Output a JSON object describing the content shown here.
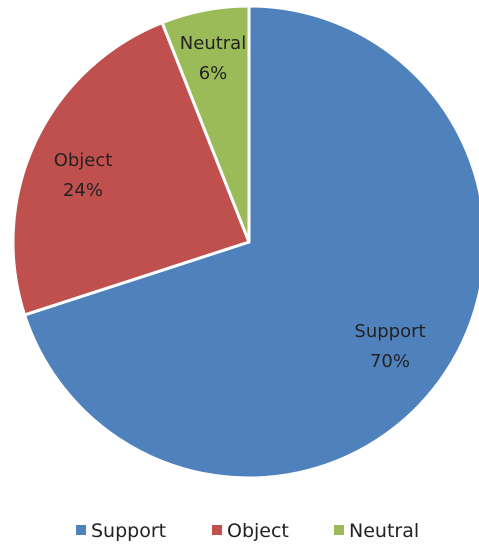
{
  "chart_data": {
    "type": "pie",
    "categories": [
      "Support",
      "Object",
      "Neutral"
    ],
    "values": [
      70,
      24,
      6
    ],
    "value_labels": [
      "70%",
      "24%",
      "6%"
    ],
    "colors": [
      "#4f81bd",
      "#c0504d",
      "#9bbb59"
    ],
    "title": "",
    "legend_position": "bottom",
    "start_angle_deg": 0,
    "direction": "clockwise"
  }
}
